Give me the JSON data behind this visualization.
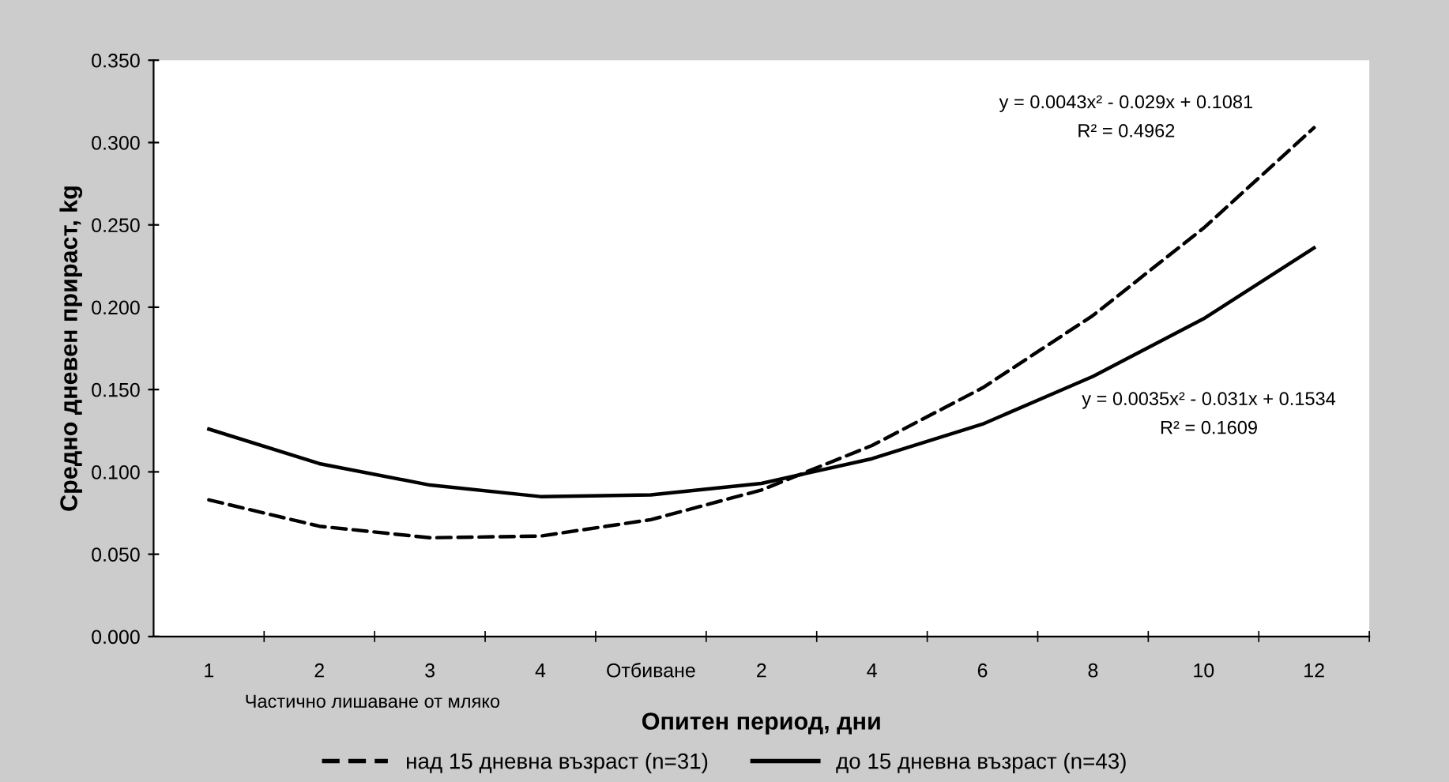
{
  "chart_data": {
    "type": "line",
    "xlabel": "Опитен период, дни",
    "ylabel": "Средно дневен прираст, kg",
    "categories": [
      "1",
      "2",
      "3",
      "4",
      "Отбиване",
      "2",
      "4",
      "6",
      "8",
      "10",
      "12"
    ],
    "series": [
      {
        "name": "над 15 дневна възраст (n=31)",
        "color": "#000000",
        "line_style": "dashed",
        "values": [
          0.083,
          0.067,
          0.06,
          0.061,
          0.071,
          0.089,
          0.116,
          0.151,
          0.195,
          0.248,
          0.309
        ]
      },
      {
        "name": "до 15 дневна възраст (n=43)",
        "color": "#000000",
        "line_style": "solid",
        "values": [
          0.126,
          0.105,
          0.092,
          0.085,
          0.086,
          0.093,
          0.108,
          0.129,
          0.158,
          0.193,
          0.236
        ]
      }
    ],
    "ylim": [
      0,
      0.35
    ],
    "yticks": [
      {
        "value": 0,
        "label": "0.000"
      },
      {
        "value": 0.05,
        "label": "0.050"
      },
      {
        "value": 0.1,
        "label": "0.100"
      },
      {
        "value": 0.15,
        "label": "0.150"
      },
      {
        "value": 0.2,
        "label": "0.200"
      },
      {
        "value": 0.25,
        "label": "0.250"
      },
      {
        "value": 0.3,
        "label": "0.300"
      },
      {
        "value": 0.35,
        "label": "0.350"
      }
    ],
    "annotations": [
      "y = 0.0043x² - 0.029x + 0.1081",
      "R² = 0.4962",
      "y = 0.0035x² - 0.031x + 0.1534",
      "R² = 0.1609",
      "Частично лишаване от мляко"
    ],
    "legend": "bottom",
    "grid": false,
    "marker": "none"
  }
}
